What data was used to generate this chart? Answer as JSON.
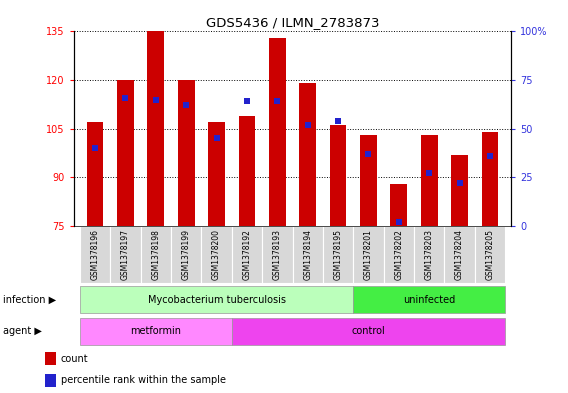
{
  "title": "GDS5436 / ILMN_2783873",
  "samples": [
    "GSM1378196",
    "GSM1378197",
    "GSM1378198",
    "GSM1378199",
    "GSM1378200",
    "GSM1378192",
    "GSM1378193",
    "GSM1378194",
    "GSM1378195",
    "GSM1378201",
    "GSM1378202",
    "GSM1378203",
    "GSM1378204",
    "GSM1378205"
  ],
  "counts": [
    107,
    120,
    135,
    120,
    107,
    109,
    133,
    119,
    106,
    103,
    88,
    103,
    97,
    104
  ],
  "percentiles": [
    40,
    66,
    65,
    62,
    45,
    64,
    64,
    52,
    54,
    37,
    2,
    27,
    22,
    36
  ],
  "ylim_left": [
    75,
    135
  ],
  "ylim_right": [
    0,
    100
  ],
  "yticks_left": [
    75,
    90,
    105,
    120,
    135
  ],
  "yticks_right": [
    0,
    25,
    50,
    75,
    100
  ],
  "ytick_right_labels": [
    "0",
    "25",
    "50",
    "75",
    "100%"
  ],
  "bar_color": "#cc0000",
  "dot_color": "#2222cc",
  "bar_width": 0.55,
  "infection_groups": [
    {
      "label": "Mycobacterium tuberculosis",
      "start": 0,
      "end": 9,
      "color": "#bbffbb"
    },
    {
      "label": "uninfected",
      "start": 9,
      "end": 14,
      "color": "#44ee44"
    }
  ],
  "agent_groups": [
    {
      "label": "metformin",
      "start": 0,
      "end": 5,
      "color": "#ff88ff"
    },
    {
      "label": "control",
      "start": 5,
      "end": 14,
      "color": "#ee44ee"
    }
  ],
  "infection_label": "infection",
  "agent_label": "agent",
  "legend_count_label": "count",
  "legend_percentile_label": "percentile rank within the sample",
  "tick_area_color": "#d8d8d8"
}
